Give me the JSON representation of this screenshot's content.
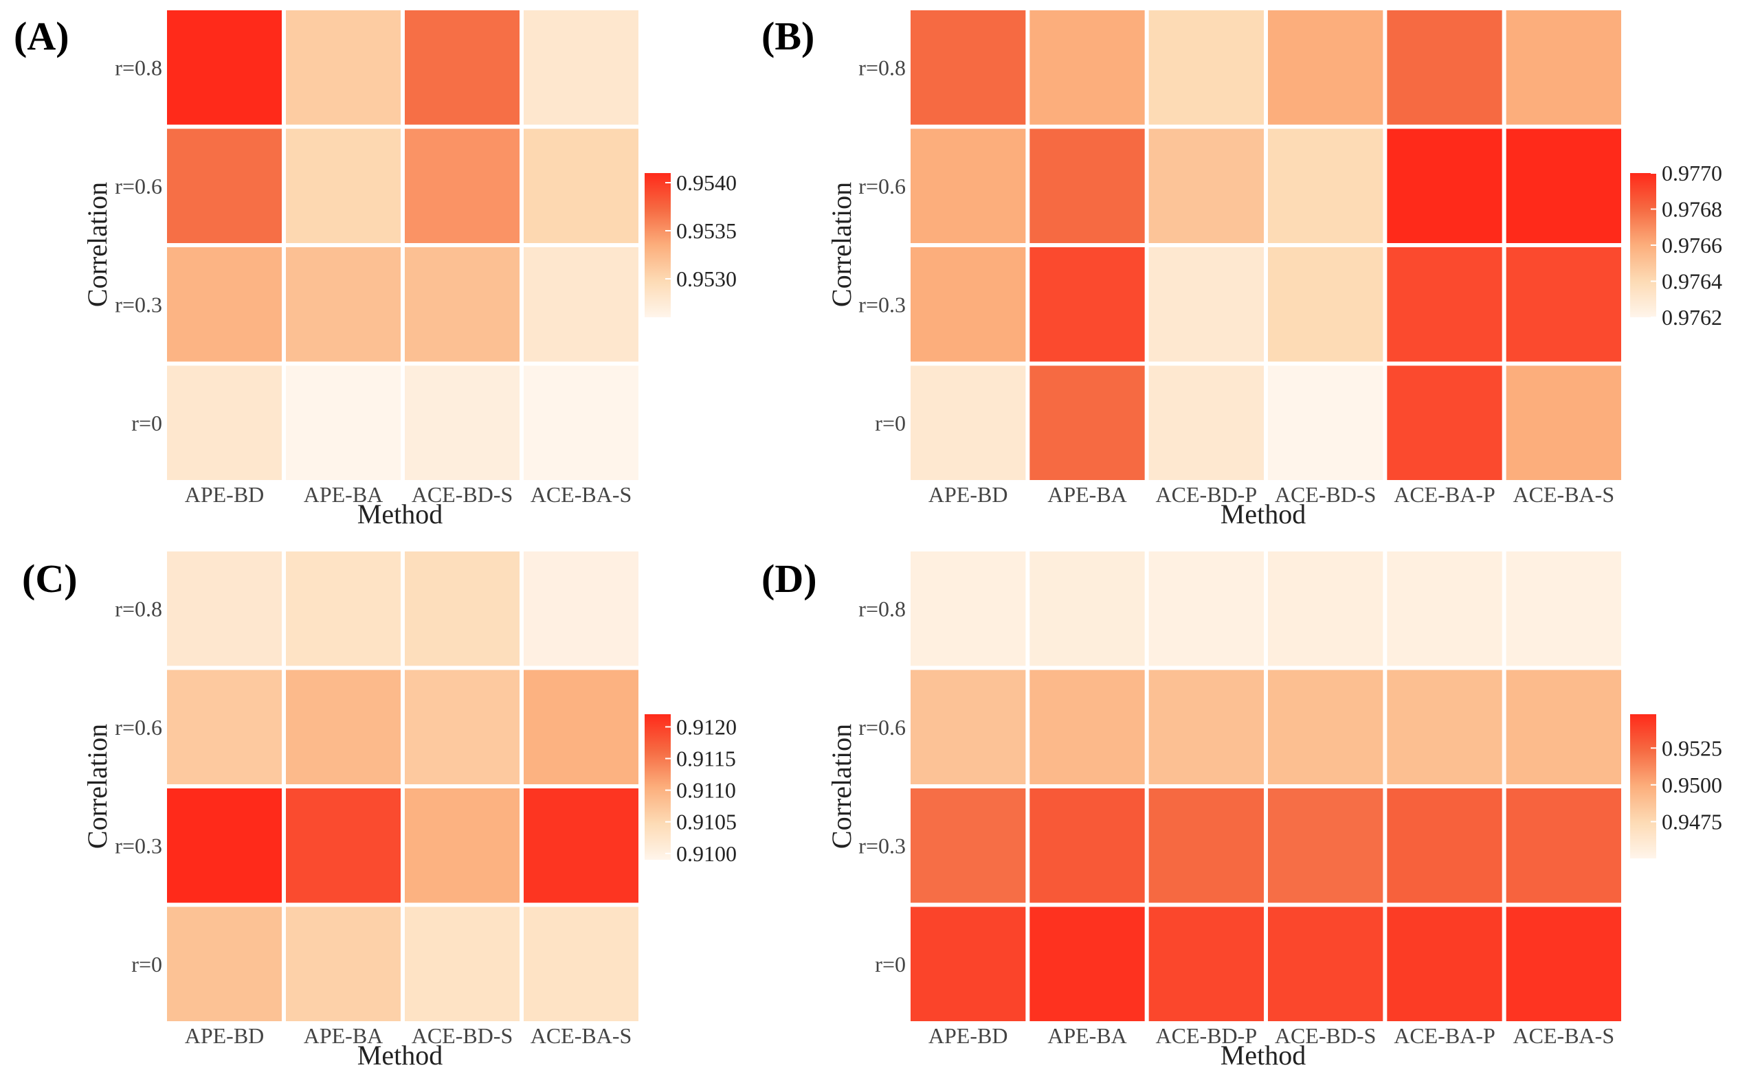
{
  "chart_data": [
    {
      "panel_label": "(A)",
      "type": "heatmap",
      "xlabel": "Method",
      "ylabel": "Correlation",
      "x_categories": [
        "APE-BD",
        "APE-BA",
        "ACE-BD-S",
        "ACE-BA-S"
      ],
      "y_categories": [
        "r=0.8",
        "r=0.6",
        "r=0.3",
        "r=0"
      ],
      "values": [
        [
          0.9541,
          0.9531,
          0.9537,
          0.9528
        ],
        [
          0.9537,
          0.953,
          0.9535,
          0.953
        ],
        [
          0.9533,
          0.9532,
          0.9532,
          0.9528
        ],
        [
          0.9528,
          0.9526,
          0.9527,
          0.9526
        ]
      ],
      "color_range": [
        0.9526,
        0.9541
      ],
      "legend_ticks": [
        "0.9540",
        "0.9535",
        "0.9530"
      ],
      "legend_tick_values": [
        0.954,
        0.9535,
        0.953
      ]
    },
    {
      "panel_label": "(B)",
      "type": "heatmap",
      "xlabel": "Method",
      "ylabel": "Correlation",
      "x_categories": [
        "APE-BD",
        "APE-BA",
        "ACE-BD-P",
        "ACE-BD-S",
        "ACE-BA-P",
        "ACE-BA-S"
      ],
      "y_categories": [
        "r=0.8",
        "r=0.6",
        "r=0.3",
        "r=0"
      ],
      "values": [
        [
          0.9768,
          0.9766,
          0.9764,
          0.9766,
          0.9768,
          0.9766
        ],
        [
          0.9766,
          0.9768,
          0.9765,
          0.9764,
          0.977,
          0.977
        ],
        [
          0.9766,
          0.9769,
          0.9763,
          0.9764,
          0.9769,
          0.9769
        ],
        [
          0.9763,
          0.9768,
          0.9763,
          0.9762,
          0.9769,
          0.9766
        ]
      ],
      "color_range": [
        0.9762,
        0.977
      ],
      "legend_ticks": [
        "0.9770",
        "0.9768",
        "0.9766",
        "0.9764",
        "0.9762"
      ],
      "legend_tick_values": [
        0.977,
        0.9768,
        0.9766,
        0.9764,
        0.9762
      ]
    },
    {
      "panel_label": "(C)",
      "type": "heatmap",
      "xlabel": "Method",
      "ylabel": "Correlation",
      "x_categories": [
        "APE-BD",
        "APE-BA",
        "ACE-BD-S",
        "ACE-BA-S"
      ],
      "y_categories": [
        "r=0.8",
        "r=0.6",
        "r=0.3",
        "r=0"
      ],
      "values": [
        [
          0.9102,
          0.9103,
          0.9104,
          0.91
        ],
        [
          0.9107,
          0.9109,
          0.9107,
          0.911
        ],
        [
          0.9122,
          0.9119,
          0.911,
          0.9121
        ],
        [
          0.9108,
          0.9106,
          0.9103,
          0.9103
        ]
      ],
      "color_range": [
        0.9099,
        0.9122
      ],
      "legend_ticks": [
        "0.9120",
        "0.9115",
        "0.9110",
        "0.9105",
        "0.9100"
      ],
      "legend_tick_values": [
        0.912,
        0.9115,
        0.911,
        0.9105,
        0.91
      ]
    },
    {
      "panel_label": "(D)",
      "type": "heatmap",
      "xlabel": "Method",
      "ylabel": "Correlation",
      "x_categories": [
        "APE-BD",
        "APE-BA",
        "ACE-BD-P",
        "ACE-BD-S",
        "ACE-BA-P",
        "ACE-BA-S"
      ],
      "y_categories": [
        "r=0.8",
        "r=0.6",
        "r=0.3",
        "r=0"
      ],
      "values": [
        [
          0.9455,
          0.9457,
          0.9454,
          0.9456,
          0.9455,
          0.9454
        ],
        [
          0.9488,
          0.9493,
          0.9489,
          0.949,
          0.949,
          0.9492
        ],
        [
          0.9522,
          0.953,
          0.9524,
          0.9522,
          0.9527,
          0.9526
        ],
        [
          0.9538,
          0.9545,
          0.9537,
          0.9537,
          0.9541,
          0.9544
        ]
      ],
      "color_range": [
        0.945,
        0.9548
      ],
      "legend_ticks": [
        "0.9525",
        "0.9500",
        "0.9475"
      ],
      "legend_tick_values": [
        0.9525,
        0.95,
        0.9475
      ]
    }
  ]
}
